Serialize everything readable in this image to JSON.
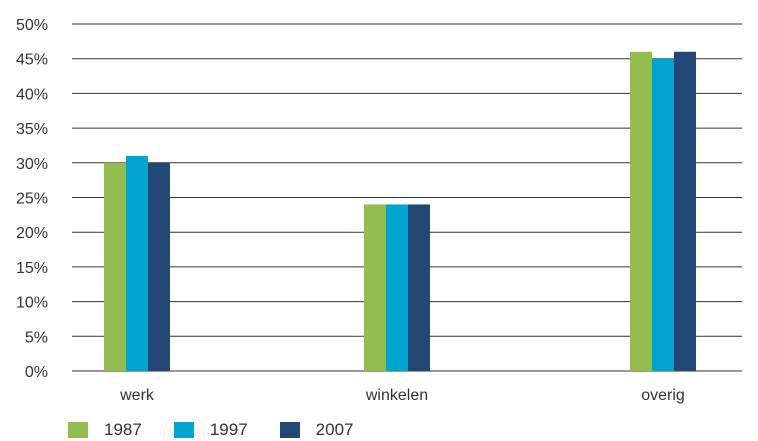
{
  "chart_data": {
    "type": "bar",
    "categories": [
      "werk",
      "winkelen",
      "overig"
    ],
    "series": [
      {
        "name": "1987",
        "values": [
          30,
          24,
          46
        ],
        "color": "#93BE4F"
      },
      {
        "name": "1997",
        "values": [
          31,
          24,
          45
        ],
        "color": "#00A5CF"
      },
      {
        "name": "2007",
        "values": [
          30,
          24,
          46
        ],
        "color": "#244876"
      }
    ],
    "ylim": [
      0,
      50
    ],
    "ytick_step": 5,
    "ytick_labels": [
      "0%",
      "5%",
      "10%",
      "15%",
      "20%",
      "25%",
      "30%",
      "35%",
      "40%",
      "45%",
      "50%"
    ],
    "grid": true,
    "legend_position": "bottom-left",
    "title": "",
    "xlabel": "",
    "ylabel": ""
  }
}
